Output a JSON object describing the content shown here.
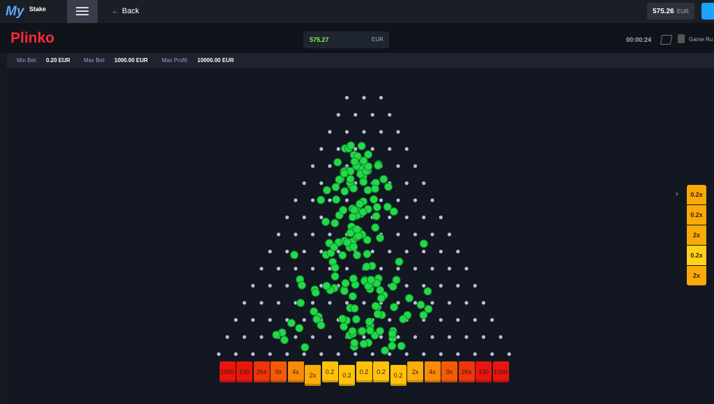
{
  "header": {
    "logo": {
      "my": "My",
      "stake": "Stake"
    },
    "back": "Back",
    "balance": {
      "amount": "575.26",
      "currency": "EUR"
    }
  },
  "game": {
    "title": "Plinko",
    "bet": {
      "amount": "575.27",
      "currency": "EUR"
    },
    "timer": "00:00:24",
    "game_rules": "Game Ru"
  },
  "limits": {
    "min_bet": {
      "label": "Min Bet:",
      "value": "0.20 EUR"
    },
    "max_bet": {
      "label": "Max Bet:",
      "value": "1000.00 EUR"
    },
    "max_profit": {
      "label": "Max Profit:",
      "value": "10000.00 EUR"
    }
  },
  "buckets": [
    "1000",
    "130",
    "26x",
    "9x",
    "4x",
    "2x",
    "0.2",
    "0.2",
    "0.2",
    "0.2",
    "0.2",
    "2x",
    "4x",
    "9x",
    "26x",
    "130",
    "1000"
  ],
  "history": [
    "0.2x",
    "0.2x",
    "2x",
    "0.2x",
    "2x"
  ]
}
